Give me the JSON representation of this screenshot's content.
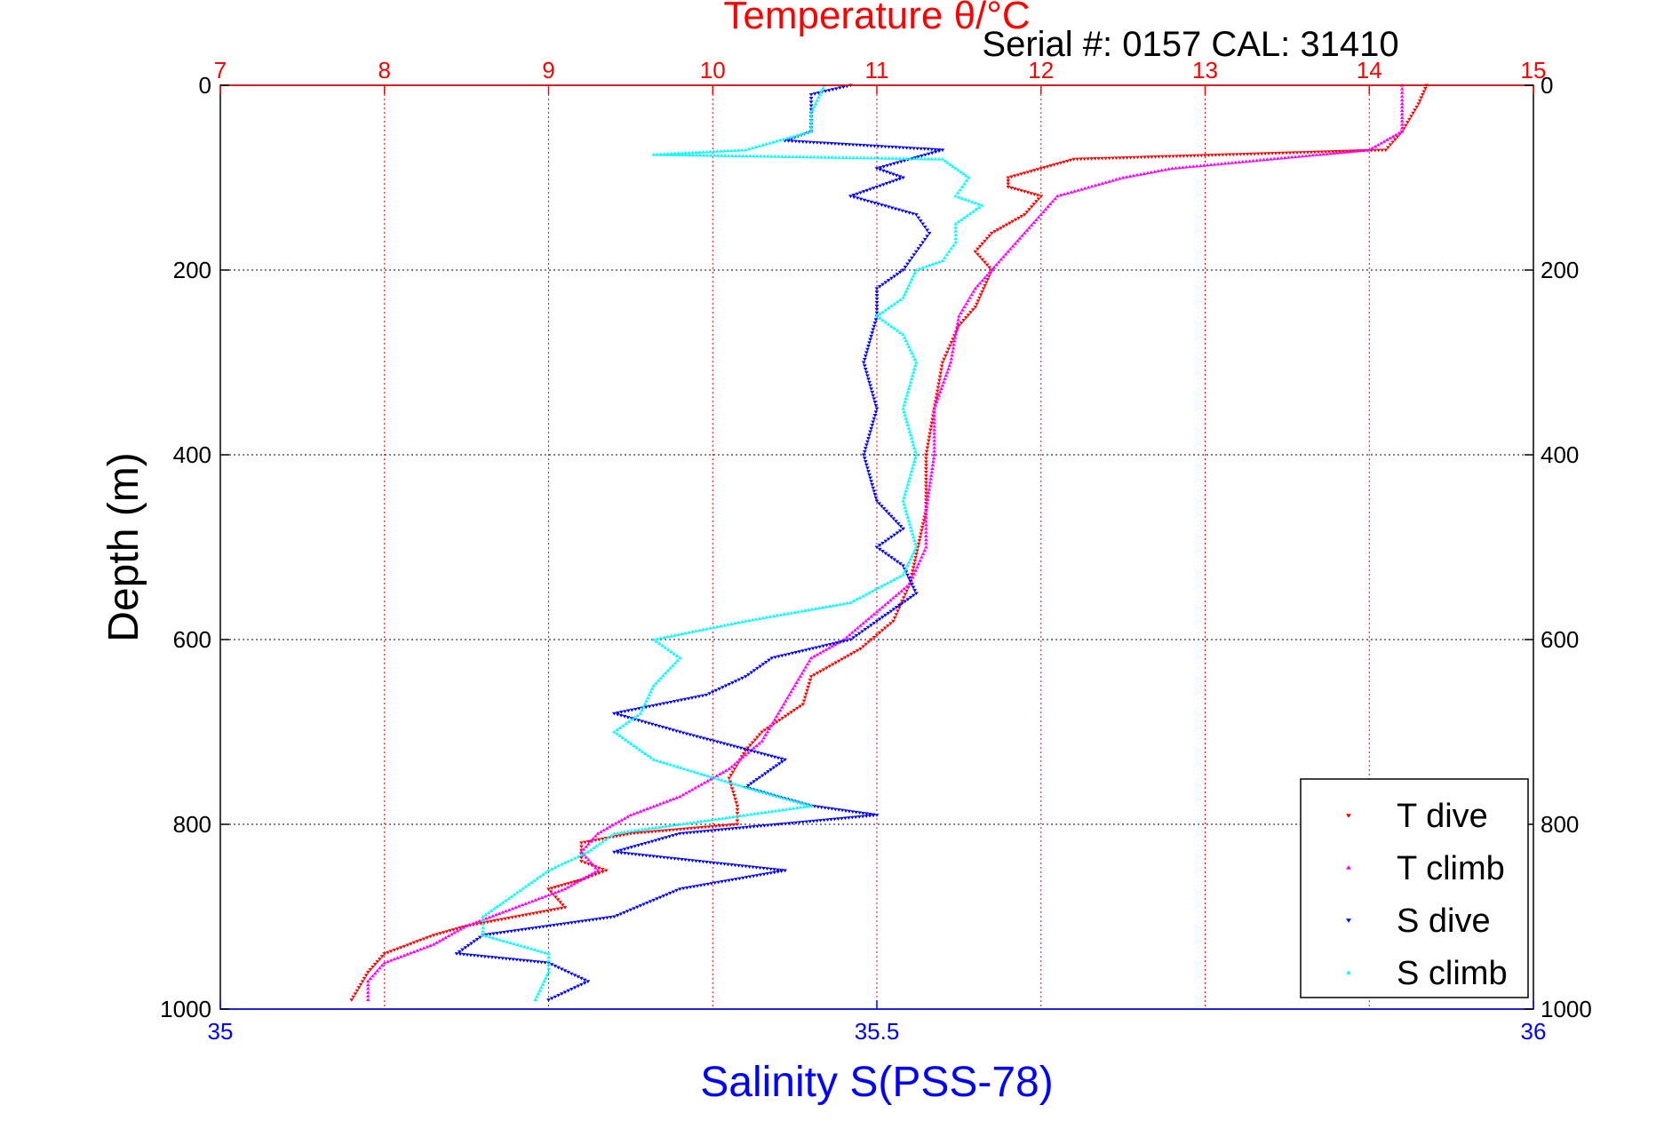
{
  "chart_data": {
    "type": "scatter",
    "title": "Temperature θ/°C",
    "subtitle": "Serial #: 0157  CAL: 31410",
    "ylabel": "Depth (m)",
    "xlabel": "Salinity S(PSS-78)",
    "y_reversed": true,
    "ylim": [
      0,
      1000
    ],
    "yticks": [
      "0",
      "200",
      "400",
      "600",
      "800",
      "1000"
    ],
    "temperature_axis": {
      "position": "top",
      "lim": [
        7,
        15
      ],
      "ticks": [
        "7",
        "8",
        "9",
        "10",
        "11",
        "12",
        "13",
        "14",
        "15"
      ]
    },
    "salinity_axis": {
      "position": "bottom",
      "lim": [
        35,
        36
      ],
      "ticks": [
        "35",
        "35.5",
        "36"
      ]
    },
    "grid": true,
    "legend": "lower-right",
    "colors": {
      "temperature_axis": "#ff0000",
      "salinity_axis": "#0000ff",
      "grid_temp": "#ff0000",
      "grid_depth": "#000000"
    },
    "series": [
      {
        "name": "T dive",
        "color": "#ff0000",
        "marker": "triangle-down",
        "axis": "temperature",
        "points": [
          [
            14.35,
            0
          ],
          [
            14.3,
            20
          ],
          [
            14.2,
            50
          ],
          [
            14.1,
            70
          ],
          [
            12.2,
            80
          ],
          [
            12.0,
            90
          ],
          [
            11.8,
            100
          ],
          [
            11.8,
            110
          ],
          [
            12.0,
            120
          ],
          [
            11.9,
            140
          ],
          [
            11.7,
            160
          ],
          [
            11.6,
            180
          ],
          [
            11.7,
            200
          ],
          [
            11.65,
            220
          ],
          [
            11.6,
            240
          ],
          [
            11.5,
            260
          ],
          [
            11.4,
            300
          ],
          [
            11.35,
            350
          ],
          [
            11.3,
            400
          ],
          [
            11.3,
            460
          ],
          [
            11.25,
            500
          ],
          [
            11.2,
            540
          ],
          [
            11.1,
            580
          ],
          [
            10.9,
            610
          ],
          [
            10.6,
            640
          ],
          [
            10.55,
            670
          ],
          [
            10.3,
            700
          ],
          [
            10.2,
            720
          ],
          [
            10.1,
            750
          ],
          [
            10.15,
            780
          ],
          [
            10.15,
            800
          ],
          [
            9.5,
            810
          ],
          [
            9.2,
            820
          ],
          [
            9.2,
            840
          ],
          [
            9.35,
            850
          ],
          [
            9.2,
            860
          ],
          [
            9.0,
            870
          ],
          [
            9.1,
            890
          ],
          [
            8.5,
            910
          ],
          [
            8.3,
            920
          ],
          [
            8.0,
            940
          ],
          [
            7.9,
            960
          ],
          [
            7.8,
            990
          ]
        ]
      },
      {
        "name": "T climb",
        "color": "#ff00ff",
        "marker": "triangle-up",
        "axis": "temperature",
        "points": [
          [
            14.2,
            0
          ],
          [
            14.2,
            20
          ],
          [
            14.2,
            50
          ],
          [
            14.0,
            70
          ],
          [
            12.8,
            90
          ],
          [
            12.5,
            100
          ],
          [
            12.1,
            120
          ],
          [
            12.0,
            140
          ],
          [
            11.9,
            160
          ],
          [
            11.8,
            180
          ],
          [
            11.7,
            200
          ],
          [
            11.6,
            220
          ],
          [
            11.5,
            250
          ],
          [
            11.45,
            300
          ],
          [
            11.35,
            350
          ],
          [
            11.35,
            400
          ],
          [
            11.3,
            460
          ],
          [
            11.3,
            500
          ],
          [
            11.2,
            540
          ],
          [
            11.0,
            570
          ],
          [
            10.8,
            600
          ],
          [
            10.6,
            620
          ],
          [
            10.5,
            650
          ],
          [
            10.4,
            680
          ],
          [
            10.3,
            710
          ],
          [
            10.1,
            740
          ],
          [
            9.8,
            770
          ],
          [
            9.5,
            790
          ],
          [
            9.3,
            810
          ],
          [
            9.2,
            830
          ],
          [
            9.3,
            850
          ],
          [
            9.1,
            870
          ],
          [
            8.8,
            890
          ],
          [
            8.5,
            910
          ],
          [
            8.3,
            930
          ],
          [
            8.0,
            950
          ],
          [
            7.9,
            970
          ],
          [
            7.9,
            990
          ]
        ]
      },
      {
        "name": "S dive",
        "color": "#0000ff",
        "marker": "triangle-down",
        "axis": "salinity",
        "points": [
          [
            35.48,
            0
          ],
          [
            35.45,
            10
          ],
          [
            35.45,
            50
          ],
          [
            35.43,
            60
          ],
          [
            35.55,
            70
          ],
          [
            35.5,
            90
          ],
          [
            35.52,
            100
          ],
          [
            35.48,
            120
          ],
          [
            35.53,
            140
          ],
          [
            35.54,
            160
          ],
          [
            35.53,
            180
          ],
          [
            35.52,
            200
          ],
          [
            35.5,
            220
          ],
          [
            35.5,
            250
          ],
          [
            35.49,
            300
          ],
          [
            35.5,
            350
          ],
          [
            35.49,
            400
          ],
          [
            35.5,
            450
          ],
          [
            35.52,
            480
          ],
          [
            35.5,
            500
          ],
          [
            35.52,
            520
          ],
          [
            35.53,
            550
          ],
          [
            35.5,
            580
          ],
          [
            35.48,
            600
          ],
          [
            35.42,
            620
          ],
          [
            35.4,
            640
          ],
          [
            35.37,
            660
          ],
          [
            35.3,
            680
          ],
          [
            35.35,
            700
          ],
          [
            35.43,
            730
          ],
          [
            35.4,
            760
          ],
          [
            35.45,
            780
          ],
          [
            35.5,
            790
          ],
          [
            35.35,
            810
          ],
          [
            35.3,
            830
          ],
          [
            35.43,
            850
          ],
          [
            35.35,
            870
          ],
          [
            35.3,
            900
          ],
          [
            35.2,
            920
          ],
          [
            35.18,
            940
          ],
          [
            35.25,
            950
          ],
          [
            35.28,
            970
          ],
          [
            35.25,
            990
          ]
        ]
      },
      {
        "name": "S climb",
        "color": "#00ffff",
        "marker": "triangle-up",
        "axis": "salinity",
        "points": [
          [
            35.46,
            0
          ],
          [
            35.45,
            30
          ],
          [
            35.45,
            50
          ],
          [
            35.4,
            70
          ],
          [
            35.33,
            75
          ],
          [
            35.55,
            80
          ],
          [
            35.56,
            90
          ],
          [
            35.57,
            100
          ],
          [
            35.56,
            120
          ],
          [
            35.58,
            130
          ],
          [
            35.56,
            150
          ],
          [
            35.56,
            170
          ],
          [
            35.55,
            190
          ],
          [
            35.53,
            200
          ],
          [
            35.52,
            230
          ],
          [
            35.5,
            250
          ],
          [
            35.52,
            270
          ],
          [
            35.53,
            300
          ],
          [
            35.52,
            350
          ],
          [
            35.53,
            400
          ],
          [
            35.52,
            450
          ],
          [
            35.53,
            500
          ],
          [
            35.52,
            530
          ],
          [
            35.48,
            560
          ],
          [
            35.4,
            580
          ],
          [
            35.33,
            600
          ],
          [
            35.35,
            620
          ],
          [
            35.33,
            650
          ],
          [
            35.32,
            680
          ],
          [
            35.3,
            700
          ],
          [
            35.33,
            730
          ],
          [
            35.4,
            760
          ],
          [
            35.45,
            780
          ],
          [
            35.35,
            800
          ],
          [
            35.3,
            810
          ],
          [
            35.28,
            830
          ],
          [
            35.25,
            850
          ],
          [
            35.2,
            900
          ],
          [
            35.2,
            920
          ],
          [
            35.25,
            940
          ],
          [
            35.25,
            960
          ],
          [
            35.24,
            990
          ]
        ]
      }
    ]
  }
}
